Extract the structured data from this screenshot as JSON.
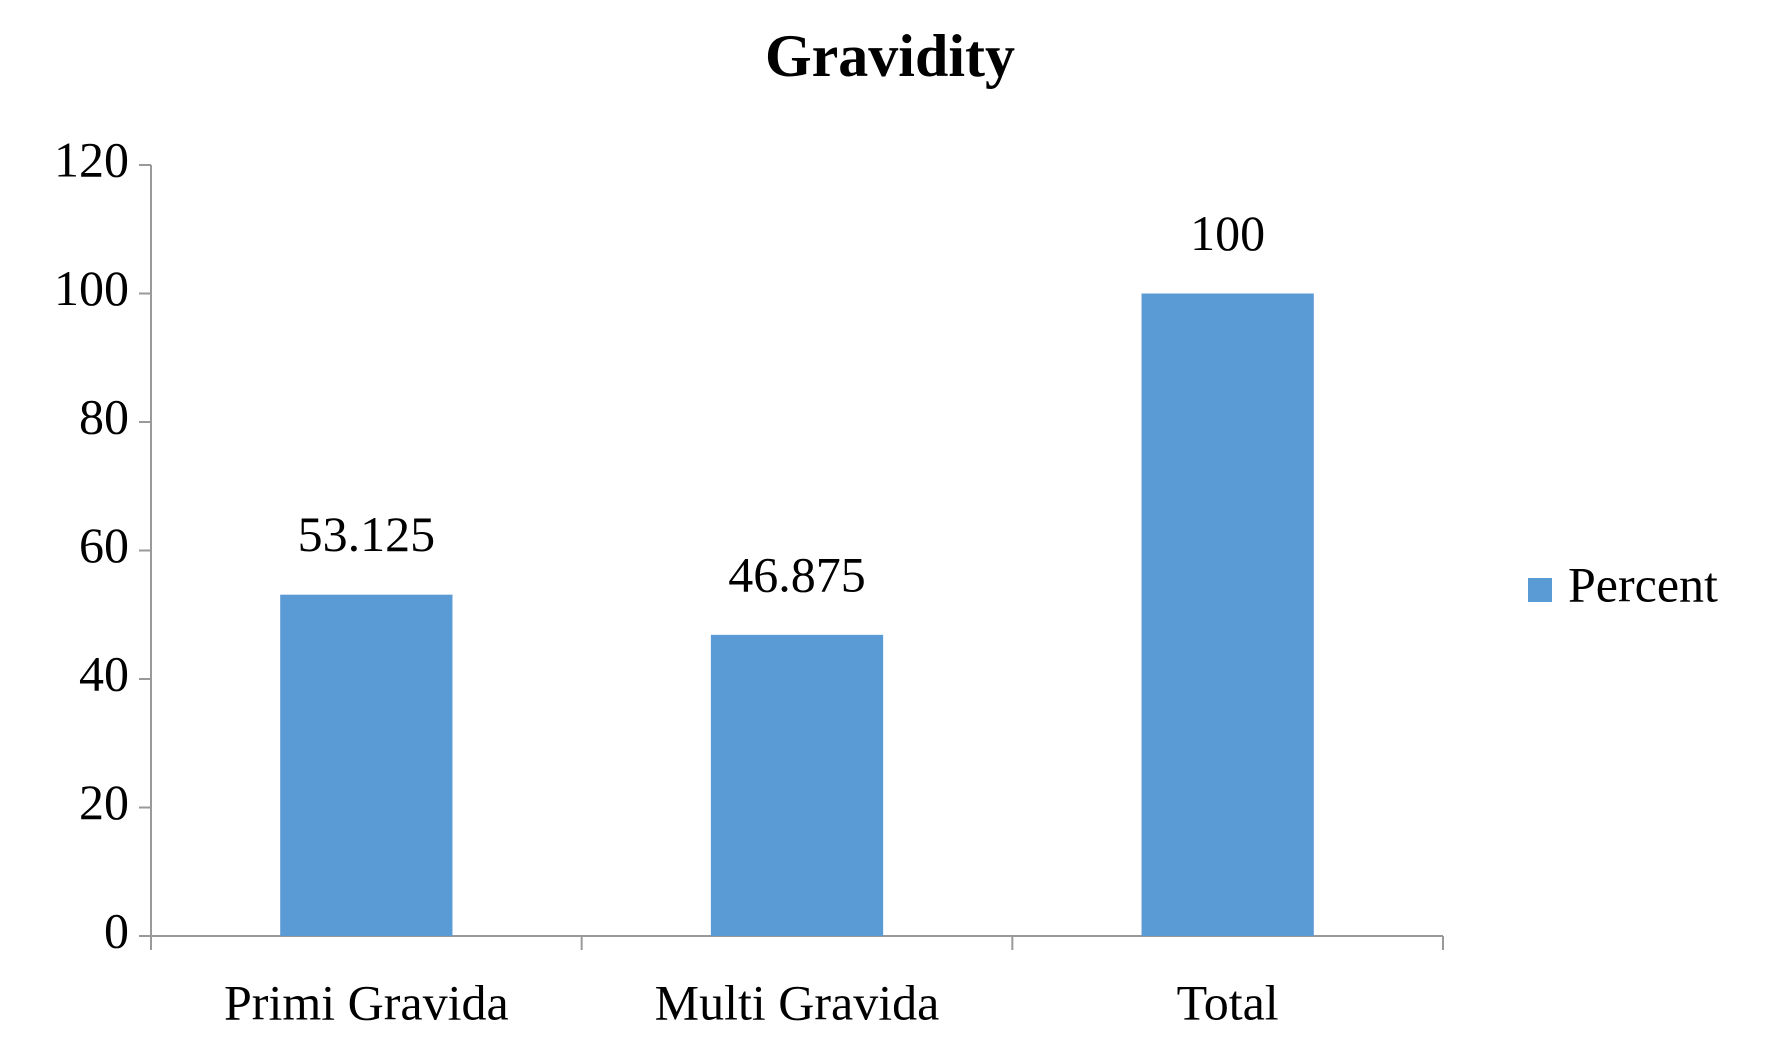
{
  "chart_data": {
    "type": "bar",
    "title": "Gravidity",
    "categories": [
      "Primi Gravida",
      "Multi Gravida",
      "Total"
    ],
    "series": [
      {
        "name": "Percent",
        "color": "#5b9bd5",
        "values": [
          53.125,
          46.875,
          100
        ]
      }
    ],
    "ylim": [
      0,
      120
    ],
    "yticks": [
      0,
      20,
      40,
      60,
      80,
      100,
      120
    ],
    "grid": false,
    "legend": "right"
  }
}
